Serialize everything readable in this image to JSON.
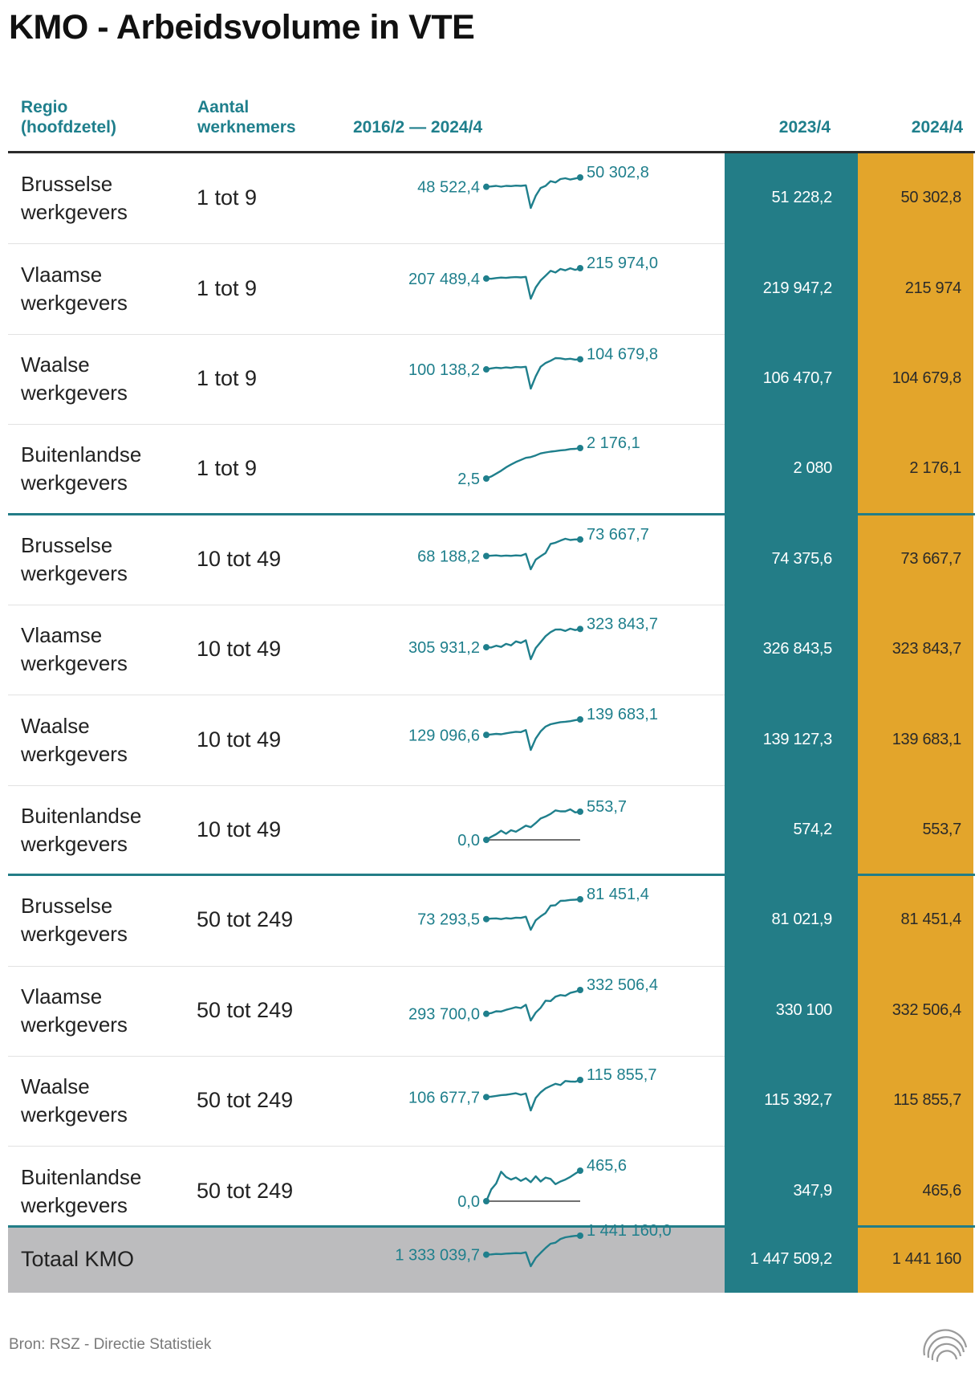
{
  "title": "KMO - Arbeidsvolume in VTE",
  "headers": {
    "region": "Regio\n(hoofdzetel)",
    "aantal": "Aantal\nwerknemers",
    "period": "2016/2 — 2024/4",
    "y2023": "2023/4",
    "y2024": "2024/4"
  },
  "footer": {
    "source": "Bron: RSZ - Directie Statistiek"
  },
  "colors": {
    "accent_teal": "#237d87",
    "accent_orange": "#e3a52b",
    "text_teal": "#1f7f8c",
    "total_bg": "#bcbcbe"
  },
  "chart_data": {
    "type": "table",
    "columns": [
      "Regio (hoofdzetel)",
      "Aantal werknemers",
      "2016/2 — 2024/4",
      "2023/4",
      "2024/4"
    ],
    "period": {
      "from": "2016/2",
      "to": "2024/4"
    },
    "rows": [
      {
        "region": [
          "Brusselse",
          "werkgevers"
        ],
        "size": "1 tot 9",
        "start": 48522.4,
        "start_label": "48 522,4",
        "end": 50302.8,
        "end_label": "50 302,8",
        "y2023": "51 228,2",
        "y2024": "50 302,8",
        "trend": [
          48522.4,
          48600,
          48700,
          48550,
          48700,
          48650,
          48750,
          48700,
          48800,
          44500,
          46800,
          48300,
          48700,
          49600,
          49350,
          50000,
          50150,
          49900,
          50100,
          50302.8
        ]
      },
      {
        "region": [
          "Vlaamse",
          "werkgevers"
        ],
        "size": "1 tot 9",
        "start": 207489.4,
        "start_label": "207 489,4",
        "end": 215974.0,
        "end_label": "215 974,0",
        "y2023": "219 947,2",
        "y2024": "215 974",
        "trend": [
          207489.4,
          207300,
          207900,
          208300,
          208000,
          208500,
          208700,
          208400,
          208900,
          191000,
          200200,
          205900,
          209800,
          213800,
          212400,
          215300,
          214200,
          215900,
          214600,
          215974
        ]
      },
      {
        "region": [
          "Waalse",
          "werkgevers"
        ],
        "size": "1 tot 9",
        "start": 100138.2,
        "start_label": "100 138,2",
        "end": 104679.8,
        "end_label": "104 679,8",
        "y2023": "106 470,7",
        "y2024": "104 679,8",
        "trend": [
          100138.2,
          100600,
          100900,
          100700,
          101000,
          100800,
          101200,
          101100,
          101300,
          91500,
          97000,
          101300,
          103000,
          104000,
          105200,
          105100,
          104700,
          104900,
          104500,
          104679.8
        ]
      },
      {
        "region": [
          "Buitenlandse",
          "werkgevers"
        ],
        "size": "1 tot 9",
        "start": 2.5,
        "start_label": "2,5",
        "end": 2176.1,
        "end_label": "2 176,1",
        "y2023": "2 080",
        "y2024": "2 176,1",
        "trend": [
          2.5,
          150,
          350,
          560,
          800,
          1000,
          1180,
          1330,
          1480,
          1530,
          1650,
          1790,
          1860,
          1920,
          1960,
          2010,
          2040,
          2100,
          2120,
          2176.1
        ]
      },
      {
        "region": [
          "Brusselse",
          "werkgevers"
        ],
        "size": "10 tot 49",
        "start": 68188.2,
        "start_label": "68 188,2",
        "end": 73667.7,
        "end_label": "73 667,7",
        "y2023": "74 375,6",
        "y2024": "73 667,7",
        "trend": [
          68188.2,
          68300,
          68400,
          68200,
          68350,
          68250,
          68400,
          68300,
          68900,
          63800,
          67000,
          68100,
          69200,
          72200,
          72600,
          73300,
          73900,
          73500,
          73700,
          73667.7
        ]
      },
      {
        "region": [
          "Vlaamse",
          "werkgevers"
        ],
        "size": "10 tot 49",
        "start": 305931.2,
        "start_label": "305 931,2",
        "end": 323843.7,
        "end_label": "323 843,7",
        "y2023": "326 843,5",
        "y2024": "323 843,7",
        "trend": [
          305931.2,
          305700,
          307400,
          306200,
          309200,
          307700,
          311700,
          310200,
          312700,
          294200,
          305100,
          310900,
          316800,
          320700,
          323200,
          323400,
          321900,
          324100,
          322800,
          323843.7
        ]
      },
      {
        "region": [
          "Waalse",
          "werkgevers"
        ],
        "size": "10 tot 49",
        "start": 129096.6,
        "start_label": "129 096,6",
        "end": 139683.1,
        "end_label": "139 683,1",
        "y2023": "139 127,3",
        "y2024": "139 683,1",
        "trend": [
          129096.6,
          129400,
          129800,
          129500,
          130200,
          130700,
          131200,
          131000,
          132400,
          118800,
          126600,
          131500,
          134800,
          136400,
          137100,
          137800,
          138100,
          138500,
          139200,
          139683.1
        ]
      },
      {
        "region": [
          "Buitenlandse",
          "werkgevers"
        ],
        "size": "10 tot 49",
        "start": 0.0,
        "start_label": "0,0",
        "end": 553.7,
        "end_label": "553,7",
        "y2023": "574,2",
        "y2024": "553,7",
        "trend": [
          0.0,
          60,
          110,
          180,
          120,
          190,
          160,
          220,
          280,
          250,
          330,
          420,
          460,
          510,
          580,
          560,
          560,
          600,
          540,
          553.7
        ]
      },
      {
        "region": [
          "Brusselse",
          "werkgevers"
        ],
        "size": "50 tot 249",
        "start": 73293.5,
        "start_label": "73 293,5",
        "end": 81451.4,
        "end_label": "81 451,4",
        "y2023": "81 021,9",
        "y2024": "81 451,4",
        "trend": [
          73293.5,
          73500,
          73600,
          73300,
          73700,
          73500,
          73900,
          73800,
          74300,
          68900,
          72800,
          74400,
          75800,
          78800,
          79000,
          80800,
          80900,
          81200,
          81300,
          81451.4
        ]
      },
      {
        "region": [
          "Vlaamse",
          "werkgevers"
        ],
        "size": "50 tot 249",
        "start": 293700.0,
        "start_label": "293 700,0",
        "end": 332506.4,
        "end_label": "332 506,4",
        "y2023": "330 100",
        "y2024": "332 506,4",
        "trend": [
          293700,
          295000,
          297800,
          297400,
          300200,
          302300,
          304500,
          303100,
          308400,
          282800,
          295600,
          303500,
          315100,
          314500,
          321600,
          324300,
          323100,
          327800,
          329800,
          332506.4
        ]
      },
      {
        "region": [
          "Waalse",
          "werkgevers"
        ],
        "size": "50 tot 249",
        "start": 106677.7,
        "start_label": "106 677,7",
        "end": 115855.7,
        "end_label": "115 855,7",
        "y2023": "115 392,7",
        "y2024": "115 855,7",
        "trend": [
          106677.7,
          106900,
          107300,
          107700,
          107900,
          108300,
          108700,
          107900,
          108600,
          99500,
          106200,
          109200,
          111300,
          112600,
          113800,
          113100,
          115300,
          115000,
          114900,
          115855.7
        ]
      },
      {
        "region": [
          "Buitenlandse",
          "werkgevers"
        ],
        "size": "50 tot 249",
        "start": 0.0,
        "start_label": "0,0",
        "end": 465.6,
        "end_label": "465,6",
        "y2023": "347,9",
        "y2024": "465,6",
        "trend": [
          0.0,
          180,
          270,
          450,
          370,
          330,
          360,
          310,
          350,
          290,
          380,
          300,
          360,
          340,
          260,
          300,
          330,
          370,
          420,
          465.6
        ]
      }
    ],
    "total": {
      "label": "Totaal KMO",
      "start": 1333039.7,
      "start_label": "1 333 039,7",
      "end": 1441160.0,
      "end_label": "1 441 160,0",
      "y2023": "1 447 509,2",
      "y2024": "1 441 160",
      "trend": [
        1333039.7,
        1334500,
        1336900,
        1336200,
        1338800,
        1339700,
        1341900,
        1341000,
        1346300,
        1267000,
        1314300,
        1343000,
        1370900,
        1395300,
        1401300,
        1422300,
        1432200,
        1436600,
        1440300,
        1441160
      ]
    }
  }
}
